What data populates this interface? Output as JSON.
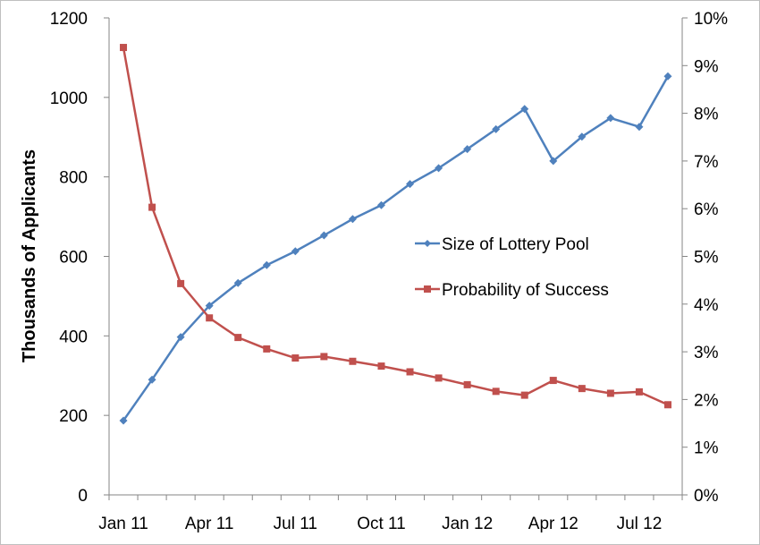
{
  "chart_data": {
    "type": "line",
    "title": "",
    "xlabel": "",
    "ylabel": "Thousands of Applicants",
    "y2label": "",
    "ylim": [
      0,
      1200
    ],
    "y2lim": [
      0,
      10
    ],
    "yticks": [
      "0",
      "200",
      "400",
      "600",
      "800",
      "1000",
      "1200"
    ],
    "y2ticks": [
      "0%",
      "1%",
      "2%",
      "3%",
      "4%",
      "5%",
      "6%",
      "7%",
      "8%",
      "9%",
      "10%"
    ],
    "x": [
      "Jan 11",
      "Feb 11",
      "Mar 11",
      "Apr 11",
      "May 11",
      "Jun 11",
      "Jul 11",
      "Aug 11",
      "Sep 11",
      "Oct 11",
      "Nov 11",
      "Dec 11",
      "Jan 12",
      "Feb 12",
      "Mar 12",
      "Apr 12",
      "May 12",
      "Jun 12",
      "Jul 12",
      "Aug 12"
    ],
    "xticks": [
      {
        "label": "Jan 11",
        "index": 0
      },
      {
        "label": "Apr 11",
        "index": 3
      },
      {
        "label": "Jul 11",
        "index": 6
      },
      {
        "label": "Oct 11",
        "index": 9
      },
      {
        "label": "Jan 12",
        "index": 12
      },
      {
        "label": "Apr 12",
        "index": 15
      },
      {
        "label": "Jul 12",
        "index": 18
      }
    ],
    "series": [
      {
        "name": "Size of Lottery Pool",
        "axis": "left",
        "color": "#4f81bd",
        "marker": "diamond",
        "values": [
          187,
          290,
          397,
          476,
          533,
          578,
          613,
          653,
          694,
          729,
          782,
          822,
          870,
          920,
          971,
          840,
          901,
          948,
          926,
          1053
        ]
      },
      {
        "name": "Probability of Success",
        "axis": "right",
        "color": "#c0504d",
        "marker": "square",
        "values": [
          9.38,
          6.03,
          4.43,
          3.71,
          3.3,
          3.06,
          2.87,
          2.9,
          2.8,
          2.7,
          2.58,
          2.45,
          2.31,
          2.17,
          2.09,
          2.4,
          2.23,
          2.13,
          2.16,
          1.89
        ]
      }
    ],
    "grid": false,
    "legend": "inside-right"
  }
}
